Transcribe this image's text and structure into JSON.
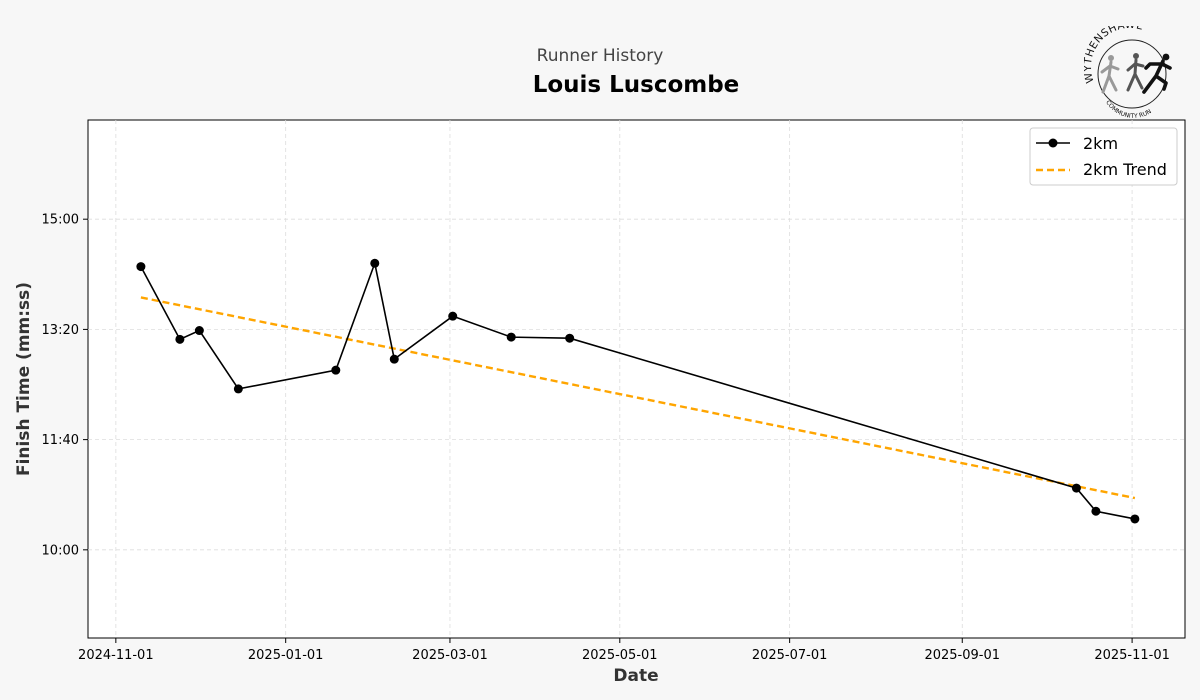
{
  "header": {
    "supertitle": "Runner History",
    "title": "Louis Luscombe"
  },
  "logo": {
    "top_text": "WYTHENSHAWE",
    "bottom_text": "COMMUNITY RUN"
  },
  "chart_data": {
    "type": "line",
    "xlabel": "Date",
    "ylabel": "Finish Time (mm:ss)",
    "x_ticks": [
      "2024-11-01",
      "2025-01-01",
      "2025-03-01",
      "2025-05-01",
      "2025-07-01",
      "2025-09-01",
      "2025-11-01"
    ],
    "y_ticks": [
      "10:00",
      "11:40",
      "13:20",
      "15:00"
    ],
    "xlim": [
      "2024-10-22",
      "2025-11-20"
    ],
    "ylim_seconds": [
      520,
      990
    ],
    "grid": true,
    "legend_position": "top-right",
    "series": [
      {
        "name": "2km",
        "style": "line-marker",
        "color": "#000000",
        "points": [
          {
            "x": "2024-11-10",
            "y": "14:17"
          },
          {
            "x": "2024-11-24",
            "y": "13:11"
          },
          {
            "x": "2024-12-01",
            "y": "13:19"
          },
          {
            "x": "2024-12-15",
            "y": "12:26"
          },
          {
            "x": "2025-01-19",
            "y": "12:43"
          },
          {
            "x": "2025-02-02",
            "y": "14:20"
          },
          {
            "x": "2025-02-09",
            "y": "12:53"
          },
          {
            "x": "2025-03-02",
            "y": "13:32"
          },
          {
            "x": "2025-03-23",
            "y": "13:13"
          },
          {
            "x": "2025-04-13",
            "y": "13:12"
          },
          {
            "x": "2025-10-12",
            "y": "10:56"
          },
          {
            "x": "2025-10-19",
            "y": "10:35"
          },
          {
            "x": "2025-11-02",
            "y": "10:28"
          }
        ]
      },
      {
        "name": "2km Trend",
        "style": "dashed",
        "color": "#FFA500",
        "points": [
          {
            "x": "2024-11-10",
            "y": "13:49"
          },
          {
            "x": "2025-11-02",
            "y": "10:47"
          }
        ]
      }
    ]
  }
}
